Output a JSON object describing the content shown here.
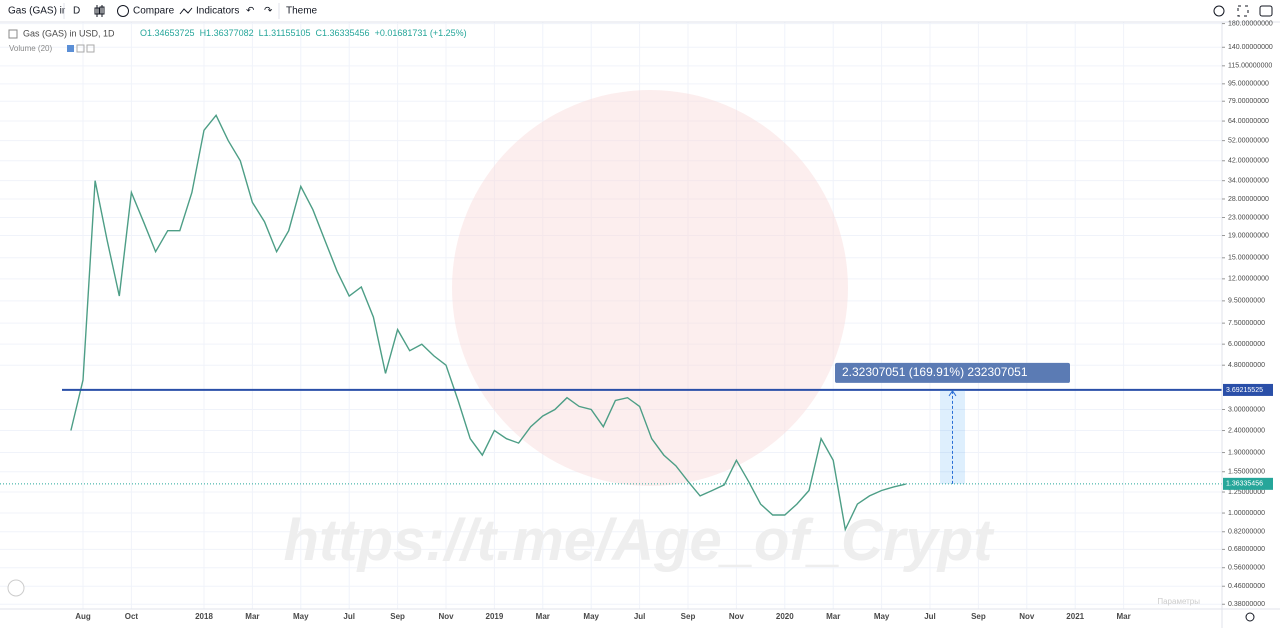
{
  "toolbar": {
    "symbol": "Gas (GAS) ir",
    "interval": "D",
    "compare": "Compare",
    "indicators": "Indicators",
    "theme": "Theme"
  },
  "legend": {
    "title": "Gas (GAS) in USD, 1D",
    "open": "O1.34653725",
    "high": "H1.36377082",
    "low": "L1.31155105",
    "close": "C1.36335456",
    "change": "+0.01681731 (+1.25%)",
    "volume": "Volume (20)"
  },
  "watermark": "https://t.me/Age_of_Crypt",
  "footer_note": "Параметры",
  "chart_data": {
    "type": "line",
    "log_scale": true,
    "grid": true,
    "categories": [
      null,
      null,
      "Aug",
      null,
      null,
      null,
      "Oct",
      null,
      null,
      null,
      null,
      null,
      "2018",
      null,
      null,
      null,
      "Mar",
      null,
      null,
      null,
      "May",
      null,
      null,
      null,
      "Jul",
      null,
      null,
      null,
      "Sep",
      null,
      null,
      null,
      "Nov",
      null,
      null,
      null,
      "2019",
      null,
      null,
      null,
      "Mar",
      null,
      null,
      null,
      "May",
      null,
      null,
      null,
      "Jul",
      null,
      null,
      null,
      "Sep",
      null,
      null,
      null,
      "Nov",
      null,
      null,
      null,
      "2020",
      null,
      null,
      null,
      "Mar",
      null,
      null,
      null,
      "May",
      null,
      null,
      null,
      "Jul",
      null,
      null,
      null,
      "Sep",
      null,
      null,
      null,
      "Nov",
      null,
      null,
      null,
      "2021",
      null,
      null,
      null,
      "Mar"
    ],
    "series": [
      {
        "name": "Gas (GAS) in USD",
        "color": "#4d9e86",
        "values": [
          null,
          2.4,
          4.1,
          34,
          18,
          10,
          30,
          22,
          16,
          20,
          20,
          30,
          58,
          68,
          52,
          42,
          27,
          22,
          16,
          20,
          32,
          25,
          18,
          13,
          10,
          11,
          8,
          4.4,
          7,
          5.6,
          6,
          5.3,
          4.8,
          3.3,
          2.2,
          1.85,
          2.4,
          2.2,
          2.1,
          2.5,
          2.8,
          3.0,
          3.4,
          3.1,
          3.0,
          2.5,
          3.3,
          3.4,
          3.1,
          2.2,
          1.85,
          1.65,
          1.4,
          1.2,
          1.27,
          1.35,
          1.75,
          1.4,
          1.1,
          0.98,
          0.98,
          1.1,
          1.27,
          2.2,
          1.75,
          0.84,
          1.1,
          1.2,
          1.27,
          1.32,
          1.36,
          null,
          null,
          null,
          null,
          null,
          null,
          null,
          null,
          null,
          null,
          null,
          null,
          null,
          null,
          null,
          null,
          null,
          null
        ]
      }
    ],
    "ylim": [
      0.35,
      191
    ],
    "yticks": [
      {
        "value": 180,
        "label": "180.00000000"
      },
      {
        "value": 140,
        "label": "140.00000000"
      },
      {
        "value": 115,
        "label": "115.00000000"
      },
      {
        "value": 95,
        "label": "95.00000000"
      },
      {
        "value": 79,
        "label": "79.00000000"
      },
      {
        "value": 64,
        "label": "64.00000000"
      },
      {
        "value": 52,
        "label": "52.00000000"
      },
      {
        "value": 42,
        "label": "42.00000000"
      },
      {
        "value": 34,
        "label": "34.00000000"
      },
      {
        "value": 28,
        "label": "28.00000000"
      },
      {
        "value": 23,
        "label": "23.00000000"
      },
      {
        "value": 19,
        "label": "19.00000000"
      },
      {
        "value": 15,
        "label": "15.00000000"
      },
      {
        "value": 12,
        "label": "12.00000000"
      },
      {
        "value": 9.5,
        "label": "9.50000000"
      },
      {
        "value": 7.5,
        "label": "7.50000000"
      },
      {
        "value": 6,
        "label": "6.00000000"
      },
      {
        "value": 4.8,
        "label": "4.80000000"
      },
      {
        "value": 3,
        "label": "3.00000000"
      },
      {
        "value": 2.4,
        "label": "2.40000000"
      },
      {
        "value": 1.9,
        "label": "1.90000000"
      },
      {
        "value": 1.55,
        "label": "1.55000000"
      },
      {
        "value": 1.25,
        "label": "1.25000000"
      },
      {
        "value": 1,
        "label": "1.00000000"
      },
      {
        "value": 0.82,
        "label": "0.82000000"
      },
      {
        "value": 0.68,
        "label": "0.68000000"
      },
      {
        "value": 0.56,
        "label": "0.56000000"
      },
      {
        "value": 0.46,
        "label": "0.46000000"
      },
      {
        "value": 0.38,
        "label": "0.38000000"
      }
    ],
    "horizontal_line": {
      "value": 3.69215525,
      "color": "#2a4fa8"
    },
    "last_price": {
      "value": 1.36335456,
      "color": "#26a69a"
    },
    "measure": {
      "label": "2.32307051 (169.91%) 232307051",
      "color": "#5b7bb4"
    }
  }
}
